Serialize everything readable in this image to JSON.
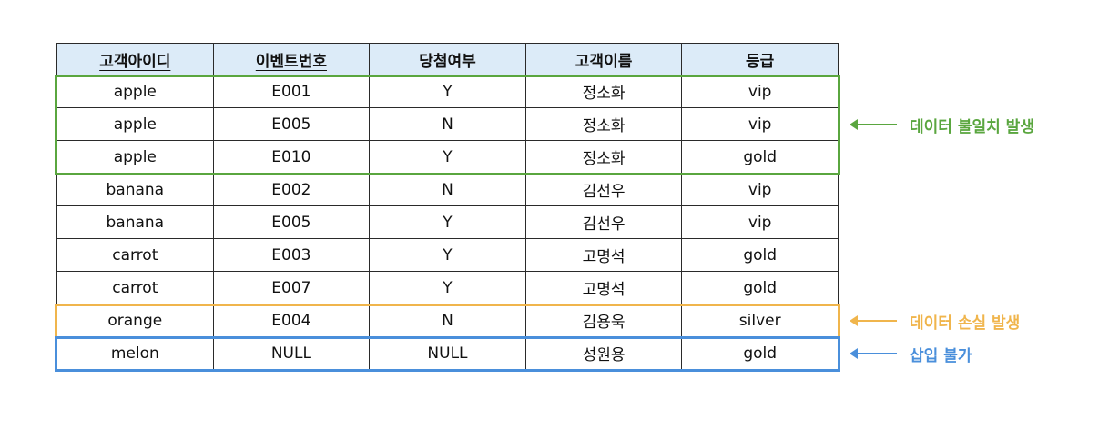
{
  "colors": {
    "header_bg": "#dcebf8",
    "green": "#5aa63f",
    "orange": "#f0b54c",
    "blue": "#4a8fdb"
  },
  "table": {
    "columns": [
      {
        "label": "고객아이디",
        "primary_key": true
      },
      {
        "label": "이벤트번호",
        "primary_key": true
      },
      {
        "label": "당첨여부",
        "primary_key": false
      },
      {
        "label": "고객이름",
        "primary_key": false
      },
      {
        "label": "등급",
        "primary_key": false
      }
    ],
    "rows": [
      [
        "apple",
        "E001",
        "Y",
        "정소화",
        "vip"
      ],
      [
        "apple",
        "E005",
        "N",
        "정소화",
        "vip"
      ],
      [
        "apple",
        "E010",
        "Y",
        "정소화",
        "gold"
      ],
      [
        "banana",
        "E002",
        "N",
        "김선우",
        "vip"
      ],
      [
        "banana",
        "E005",
        "Y",
        "김선우",
        "vip"
      ],
      [
        "carrot",
        "E003",
        "Y",
        "고명석",
        "gold"
      ],
      [
        "carrot",
        "E007",
        "Y",
        "고명석",
        "gold"
      ],
      [
        "orange",
        "E004",
        "N",
        "김용욱",
        "silver"
      ],
      [
        "melon",
        "NULL",
        "NULL",
        "성원용",
        "gold"
      ]
    ]
  },
  "annotations": [
    {
      "label": "데이터 불일치 발생",
      "color": "green",
      "rows": [
        0,
        2
      ]
    },
    {
      "label": "데이터 손실 발생",
      "color": "orange",
      "rows": [
        7,
        7
      ]
    },
    {
      "label": "삽입 불가",
      "color": "blue",
      "rows": [
        8,
        8
      ]
    }
  ]
}
